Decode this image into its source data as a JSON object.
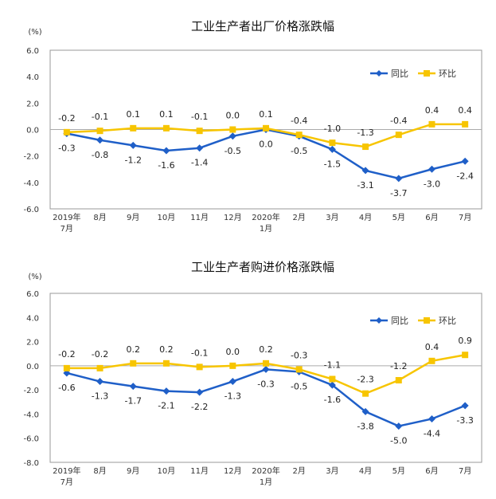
{
  "colors": {
    "yoy": "#1f5fc8",
    "mom": "#f7c500",
    "frame": "#999999"
  },
  "chart_data": [
    {
      "type": "line",
      "title": "工业生产者出厂价格涨跌幅",
      "unit": "(%)",
      "categories": [
        [
          "2019年",
          "7月"
        ],
        [
          "8月"
        ],
        [
          "9月"
        ],
        [
          "10月"
        ],
        [
          "11月"
        ],
        [
          "12月"
        ],
        [
          "2020年",
          "1月"
        ],
        [
          "2月"
        ],
        [
          "3月"
        ],
        [
          "4月"
        ],
        [
          "5月"
        ],
        [
          "6月"
        ],
        [
          "7月"
        ]
      ],
      "yticks": [
        "6.0",
        "4.0",
        "2.0",
        "0.0",
        "-2.0",
        "-4.0",
        "-6.0"
      ],
      "ylim": [
        -6,
        6
      ],
      "legend_position": "top-right",
      "series": [
        {
          "name": "同比",
          "color": "#1f5fc8",
          "marker": "diamond",
          "values": [
            -0.3,
            -0.8,
            -1.2,
            -1.6,
            -1.4,
            -0.5,
            0.0,
            -0.5,
            -1.5,
            -3.1,
            -3.7,
            -3.0,
            -2.4
          ],
          "labels": [
            "-0.3",
            "-0.8",
            "-1.2",
            "-1.6",
            "-1.4",
            "-0.5",
            "0.0",
            "-0.5",
            "-1.5",
            "-3.1",
            "-3.7",
            "-3.0",
            "-2.4"
          ]
        },
        {
          "name": "环比",
          "color": "#f7c500",
          "marker": "square",
          "values": [
            -0.2,
            -0.1,
            0.1,
            0.1,
            -0.1,
            0.0,
            0.1,
            -0.4,
            -1.0,
            -1.3,
            -0.4,
            0.4,
            0.4
          ],
          "labels": [
            "-0.2",
            "-0.1",
            "0.1",
            "0.1",
            "-0.1",
            "0.0",
            "0.1",
            "-0.4",
            "-1.0",
            "-1.3",
            "-0.4",
            "0.4",
            "0.4"
          ]
        }
      ]
    },
    {
      "type": "line",
      "title": "工业生产者购进价格涨跌幅",
      "unit": "(%)",
      "categories": [
        [
          "2019年",
          "7月"
        ],
        [
          "8月"
        ],
        [
          "9月"
        ],
        [
          "10月"
        ],
        [
          "11月"
        ],
        [
          "12月"
        ],
        [
          "2020年",
          "1月"
        ],
        [
          "2月"
        ],
        [
          "3月"
        ],
        [
          "4月"
        ],
        [
          "5月"
        ],
        [
          "6月"
        ],
        [
          "7月"
        ]
      ],
      "yticks": [
        "6.0",
        "4.0",
        "2.0",
        "0.0",
        "-2.0",
        "-4.0",
        "-6.0",
        "-8.0"
      ],
      "ylim": [
        -8,
        6
      ],
      "legend_position": "top-right",
      "series": [
        {
          "name": "同比",
          "color": "#1f5fc8",
          "marker": "diamond",
          "values": [
            -0.6,
            -1.3,
            -1.7,
            -2.1,
            -2.2,
            -1.3,
            -0.3,
            -0.5,
            -1.6,
            -3.8,
            -5.0,
            -4.4,
            -3.3
          ],
          "labels": [
            "-0.6",
            "-1.3",
            "-1.7",
            "-2.1",
            "-2.2",
            "-1.3",
            "-0.3",
            "-0.5",
            "-1.6",
            "-3.8",
            "-5.0",
            "-4.4",
            "-3.3"
          ]
        },
        {
          "name": "环比",
          "color": "#f7c500",
          "marker": "square",
          "values": [
            -0.2,
            -0.2,
            0.2,
            0.2,
            -0.1,
            0.0,
            0.2,
            -0.3,
            -1.1,
            -2.3,
            -1.2,
            0.4,
            0.9
          ],
          "labels": [
            "-0.2",
            "-0.2",
            "0.2",
            "0.2",
            "-0.1",
            "0.0",
            "0.2",
            "-0.3",
            "-1.1",
            "-2.3",
            "-1.2",
            "0.4",
            "0.9"
          ]
        }
      ]
    }
  ]
}
